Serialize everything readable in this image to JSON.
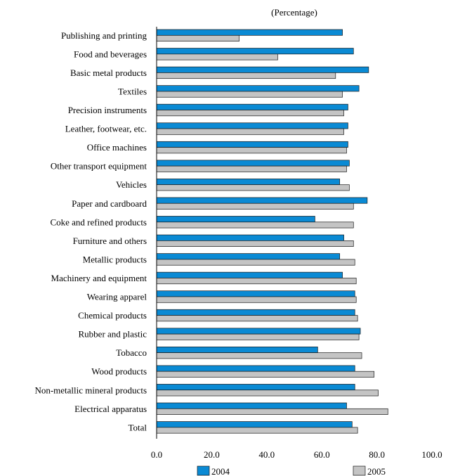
{
  "chart_data": {
    "type": "bar",
    "orientation": "horizontal",
    "subtitle": "(Percentage)",
    "categories": [
      "Publishing and printing",
      "Food and beverages",
      "Basic metal products",
      "Textiles",
      "Precision instruments",
      "Leather, footwear, etc.",
      "Office machines",
      "Other transport equipment",
      "Vehicles",
      "Paper and cardboard",
      "Coke and refined products",
      "Furniture and others",
      "Metallic products",
      "Machinery and equipment",
      "Wearing apparel",
      "Chemical products",
      "Rubber and plastic",
      "Tobacco",
      "Wood products",
      "Non-metallic mineral products",
      "Electrical apparatus",
      "Total"
    ],
    "series": [
      {
        "name": "2004",
        "color": "#0a8ad4",
        "values": [
          67.5,
          71.5,
          77.0,
          73.5,
          69.5,
          69.5,
          69.5,
          70.0,
          66.5,
          76.5,
          57.5,
          68.0,
          66.5,
          67.5,
          72.0,
          72.0,
          74.0,
          58.5,
          72.0,
          72.0,
          69.0,
          71.0
        ]
      },
      {
        "name": "2005",
        "color": "#c4c4c4",
        "values": [
          30.0,
          44.0,
          65.0,
          67.5,
          68.0,
          68.0,
          69.0,
          69.0,
          70.0,
          71.5,
          71.5,
          71.5,
          72.0,
          72.5,
          72.5,
          73.0,
          73.5,
          74.5,
          79.0,
          80.5,
          84.0,
          73.0
        ]
      }
    ],
    "xlim": [
      0,
      100
    ],
    "xticks": [
      "0.0",
      "20.0",
      "40.0",
      "60.0",
      "80.0",
      "100.0"
    ],
    "grid": false,
    "legend": "bottom"
  }
}
